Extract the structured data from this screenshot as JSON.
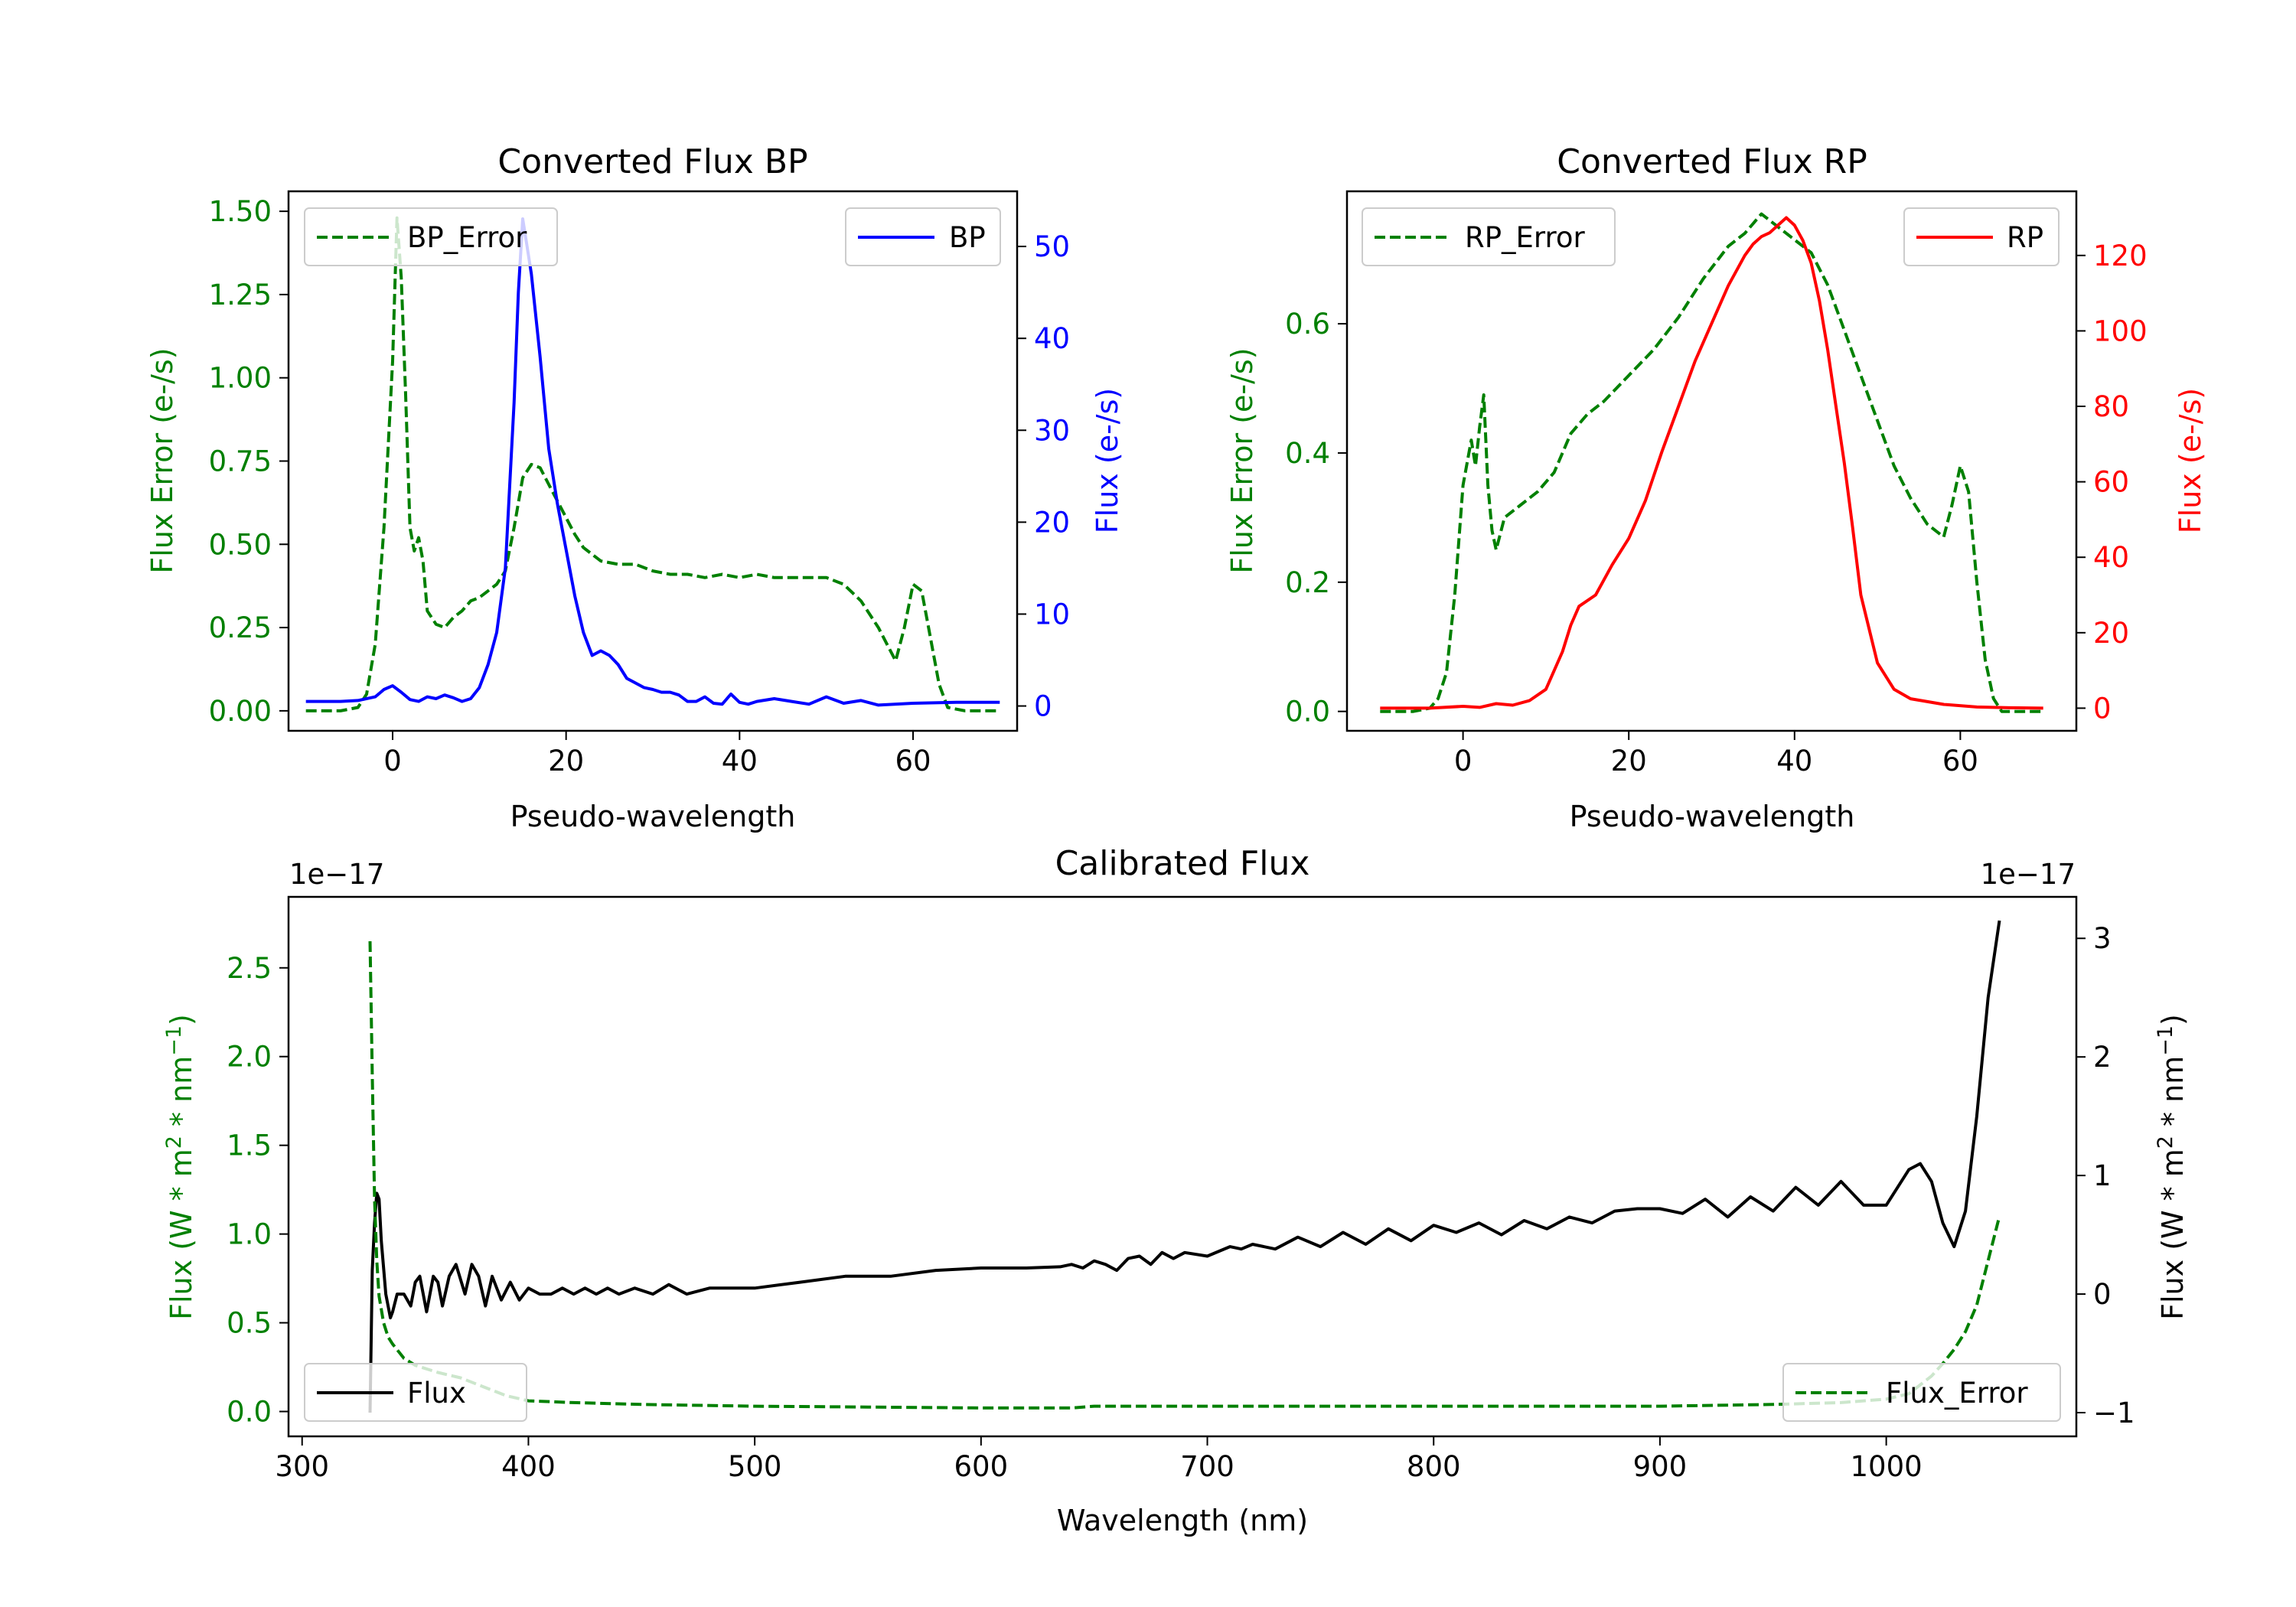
{
  "colors": {
    "bp": "#0000ff",
    "rp": "#ff0000",
    "error": "#008000",
    "flux": "#000000",
    "axis": "#000000"
  },
  "chart_data": [
    {
      "id": "bp",
      "type": "line",
      "title": "Converted Flux BP",
      "xlabel": "Pseudo-wavelength",
      "ylabel_left": "Flux Error (e-/s)",
      "ylabel_right": "Flux (e-/s)",
      "xlim": [
        -12,
        72
      ],
      "ylim_left": [
        -0.06,
        1.56
      ],
      "ylim_right": [
        -2.7,
        56
      ],
      "xticks": [
        0,
        20,
        40,
        60
      ],
      "yticks_left": [
        0.0,
        0.25,
        0.5,
        0.75,
        1.0,
        1.25,
        1.5
      ],
      "yticks_left_labels": [
        "0.00",
        "0.25",
        "0.50",
        "0.75",
        "1.00",
        "1.25",
        "1.50"
      ],
      "yticks_right": [
        0,
        10,
        20,
        30,
        40,
        50
      ],
      "yticks_right_labels": [
        "0",
        "10",
        "20",
        "30",
        "40",
        "50"
      ],
      "legend_left": {
        "label": "BP_Error",
        "placement": "upper-left"
      },
      "legend_right": {
        "label": "BP",
        "placement": "upper-right"
      },
      "series": [
        {
          "name": "BP_Error",
          "axis": "left",
          "style": "dashed",
          "color": "#008000",
          "x": [
            -10,
            -6,
            -4,
            -3,
            -2,
            -1,
            0,
            0.5,
            1,
            1.5,
            2,
            2.5,
            3,
            3.5,
            4,
            5,
            6,
            7,
            8,
            9,
            10,
            11,
            12,
            13,
            14,
            15,
            16,
            17,
            18,
            19,
            20,
            21,
            22,
            24,
            26,
            28,
            30,
            32,
            34,
            36,
            38,
            40,
            42,
            44,
            46,
            48,
            50,
            52,
            54,
            56,
            57,
            58,
            59,
            60,
            61,
            62,
            63,
            64,
            66,
            70
          ],
          "y": [
            0.0,
            0.0,
            0.01,
            0.05,
            0.2,
            0.55,
            1.05,
            1.48,
            1.3,
            0.95,
            0.55,
            0.48,
            0.52,
            0.45,
            0.3,
            0.26,
            0.25,
            0.28,
            0.3,
            0.33,
            0.34,
            0.36,
            0.38,
            0.42,
            0.55,
            0.7,
            0.74,
            0.73,
            0.68,
            0.63,
            0.58,
            0.53,
            0.49,
            0.45,
            0.44,
            0.44,
            0.42,
            0.41,
            0.41,
            0.4,
            0.41,
            0.4,
            0.41,
            0.4,
            0.4,
            0.4,
            0.4,
            0.38,
            0.33,
            0.25,
            0.2,
            0.15,
            0.25,
            0.38,
            0.36,
            0.22,
            0.08,
            0.01,
            0.0,
            0.0
          ]
        },
        {
          "name": "BP",
          "axis": "right",
          "style": "solid",
          "color": "#0000ff",
          "x": [
            -10,
            -6,
            -4,
            -2,
            -1,
            0,
            1,
            2,
            3,
            4,
            5,
            6,
            7,
            8,
            9,
            10,
            11,
            12,
            13,
            14,
            14.5,
            15,
            15.5,
            16,
            17,
            18,
            19,
            20,
            21,
            22,
            23,
            24,
            25,
            26,
            27,
            28,
            29,
            30,
            31,
            32,
            33,
            34,
            35,
            36,
            37,
            38,
            39,
            40,
            41,
            42,
            44,
            46,
            48,
            50,
            52,
            54,
            56,
            60,
            65,
            70
          ],
          "y": [
            0.5,
            0.5,
            0.6,
            1.0,
            1.8,
            2.2,
            1.5,
            0.7,
            0.5,
            1.0,
            0.8,
            1.2,
            0.9,
            0.5,
            0.8,
            2.0,
            4.5,
            8.0,
            15.0,
            33.0,
            45.0,
            53.0,
            50.0,
            47.0,
            38.0,
            28.0,
            22.0,
            17.0,
            12.0,
            8.0,
            5.5,
            6.0,
            5.5,
            4.5,
            3.0,
            2.5,
            2.0,
            1.8,
            1.5,
            1.5,
            1.2,
            0.5,
            0.5,
            1.0,
            0.3,
            0.2,
            1.3,
            0.4,
            0.2,
            0.5,
            0.8,
            0.5,
            0.2,
            1.0,
            0.3,
            0.6,
            0.1,
            0.3,
            0.4,
            0.4
          ]
        }
      ]
    },
    {
      "id": "rp",
      "type": "line",
      "title": "Converted Flux RP",
      "xlabel": "Pseudo-wavelength",
      "ylabel_left": "Flux Error (e-/s)",
      "ylabel_right": "Flux (e-/s)",
      "xlim": [
        -14,
        74
      ],
      "ylim_left": [
        -0.03,
        0.805
      ],
      "ylim_right": [
        -6,
        137
      ],
      "xticks": [
        0,
        20,
        40,
        60
      ],
      "yticks_left": [
        0.0,
        0.2,
        0.4,
        0.6
      ],
      "yticks_left_labels": [
        "0.0",
        "0.2",
        "0.4",
        "0.6"
      ],
      "yticks_right": [
        0,
        20,
        40,
        60,
        80,
        100,
        120
      ],
      "yticks_right_labels": [
        "0",
        "20",
        "40",
        "60",
        "80",
        "100",
        "120"
      ],
      "legend_left": {
        "label": "RP_Error",
        "placement": "upper-left"
      },
      "legend_right": {
        "label": "RP",
        "placement": "upper-right"
      },
      "series": [
        {
          "name": "RP_Error",
          "axis": "left",
          "style": "dashed",
          "color": "#008000",
          "x": [
            -10,
            -6,
            -4,
            -3,
            -2,
            -1,
            0,
            1,
            1.5,
            2,
            2.5,
            3,
            3.5,
            4,
            5,
            7,
            9,
            11,
            13,
            15,
            17,
            20,
            23,
            26,
            29,
            32,
            34,
            36,
            38,
            40,
            42,
            44,
            46,
            48,
            50,
            52,
            54,
            56,
            57,
            58,
            59,
            60,
            61,
            62,
            63,
            64,
            65,
            70
          ],
          "y": [
            0.0,
            0.0,
            0.005,
            0.02,
            0.06,
            0.18,
            0.35,
            0.42,
            0.38,
            0.44,
            0.49,
            0.35,
            0.28,
            0.25,
            0.3,
            0.32,
            0.34,
            0.37,
            0.43,
            0.46,
            0.48,
            0.52,
            0.56,
            0.61,
            0.67,
            0.72,
            0.74,
            0.77,
            0.75,
            0.73,
            0.71,
            0.66,
            0.59,
            0.52,
            0.45,
            0.38,
            0.33,
            0.29,
            0.28,
            0.27,
            0.32,
            0.38,
            0.34,
            0.2,
            0.08,
            0.02,
            0.0,
            0.0
          ]
        },
        {
          "name": "RP",
          "axis": "right",
          "style": "solid",
          "color": "#ff0000",
          "x": [
            -10,
            -4,
            0,
            2,
            4,
            6,
            8,
            10,
            12,
            13,
            14,
            16,
            18,
            20,
            22,
            24,
            26,
            28,
            30,
            32,
            34,
            35,
            36,
            37,
            38,
            39,
            40,
            41,
            42,
            43,
            44,
            45,
            46,
            47,
            48,
            50,
            52,
            54,
            58,
            62,
            66,
            70
          ],
          "y": [
            0.0,
            0.0,
            0.5,
            0.2,
            1.2,
            0.8,
            2.0,
            5.0,
            15.0,
            22.0,
            27.0,
            30.0,
            38.0,
            45.0,
            55.0,
            68.0,
            80.0,
            92.0,
            102.0,
            112.0,
            120.0,
            123.0,
            125.0,
            126.0,
            128.0,
            130.0,
            128.0,
            124.0,
            118.0,
            108.0,
            95.0,
            80.0,
            65.0,
            48.0,
            30.0,
            12.0,
            5.0,
            2.5,
            1.0,
            0.3,
            0.1,
            0.0
          ]
        }
      ]
    },
    {
      "id": "cal",
      "type": "line",
      "title": "Calibrated Flux",
      "xlabel": "Wavelength (nm)",
      "ylabel_left": "Flux (W * m$^2$ * nm$^{-1}$)",
      "ylabel_right": "Flux (W * m$^2$ * nm$^{-1}$)",
      "ylabel_prefix": "Flux (W * m",
      "ylabel_mid": " * nm",
      "ylabel_end": ")",
      "ylabel_sup1": "2",
      "ylabel_sup2": "−1",
      "offset_left": "1e−17",
      "offset_right": "1e−17",
      "xlim": [
        294,
        1084
      ],
      "ylim_left": [
        -0.14,
        2.9
      ],
      "ylim_right": [
        -1.2,
        3.35
      ],
      "xticks": [
        300,
        400,
        500,
        600,
        700,
        800,
        900,
        1000
      ],
      "yticks_left": [
        0.0,
        0.5,
        1.0,
        1.5,
        2.0,
        2.5
      ],
      "yticks_left_labels": [
        "0.0",
        "0.5",
        "1.0",
        "1.5",
        "2.0",
        "2.5"
      ],
      "yticks_right": [
        -1,
        0,
        1,
        2,
        3
      ],
      "yticks_right_labels": [
        "−1",
        "0",
        "1",
        "2",
        "3"
      ],
      "legend_left": {
        "label": "Flux",
        "placement": "lower-left"
      },
      "legend_right": {
        "label": "Flux_Error",
        "placement": "lower-right"
      },
      "series": [
        {
          "name": "Flux",
          "axis": "right",
          "style": "solid",
          "color": "#000000",
          "x": [
            330,
            331,
            332,
            333,
            334,
            335,
            337,
            339,
            340,
            342,
            345,
            348,
            350,
            352,
            355,
            358,
            360,
            362,
            365,
            368,
            372,
            375,
            378,
            381,
            384,
            388,
            392,
            396,
            400,
            405,
            410,
            415,
            420,
            425,
            430,
            435,
            440,
            447,
            455,
            462,
            470,
            480,
            500,
            520,
            540,
            560,
            580,
            600,
            620,
            635,
            640,
            645,
            650,
            655,
            660,
            665,
            670,
            675,
            680,
            685,
            690,
            700,
            710,
            715,
            720,
            730,
            740,
            750,
            760,
            770,
            780,
            790,
            800,
            810,
            820,
            830,
            840,
            850,
            860,
            870,
            880,
            890,
            900,
            910,
            920,
            930,
            940,
            950,
            960,
            970,
            980,
            990,
            1000,
            1010,
            1015,
            1020,
            1025,
            1030,
            1035,
            1040,
            1045,
            1050
          ],
          "y": [
            -1.0,
            0.2,
            0.6,
            0.85,
            0.8,
            0.45,
            0.0,
            -0.2,
            -0.15,
            0.0,
            0.0,
            -0.1,
            0.1,
            0.15,
            -0.15,
            0.15,
            0.1,
            -0.1,
            0.15,
            0.25,
            0.0,
            0.25,
            0.15,
            -0.1,
            0.15,
            -0.05,
            0.1,
            -0.05,
            0.05,
            0.0,
            0.0,
            0.05,
            0.0,
            0.05,
            0.0,
            0.05,
            0.0,
            0.05,
            0.0,
            0.08,
            0.0,
            0.05,
            0.05,
            0.1,
            0.15,
            0.15,
            0.2,
            0.22,
            0.22,
            0.23,
            0.25,
            0.22,
            0.28,
            0.25,
            0.2,
            0.3,
            0.32,
            0.25,
            0.35,
            0.3,
            0.35,
            0.32,
            0.4,
            0.38,
            0.42,
            0.38,
            0.48,
            0.4,
            0.52,
            0.42,
            0.55,
            0.45,
            0.58,
            0.52,
            0.6,
            0.5,
            0.62,
            0.55,
            0.65,
            0.6,
            0.7,
            0.72,
            0.72,
            0.68,
            0.8,
            0.65,
            0.82,
            0.7,
            0.9,
            0.75,
            0.95,
            0.75,
            0.75,
            1.05,
            1.1,
            0.95,
            0.6,
            0.4,
            0.7,
            1.5,
            2.5,
            3.15
          ]
        },
        {
          "name": "Flux_Error",
          "axis": "left",
          "style": "dashed",
          "color": "#008000",
          "x": [
            330,
            331,
            332,
            333,
            334,
            336,
            338,
            340,
            345,
            350,
            360,
            370,
            380,
            390,
            400,
            420,
            450,
            500,
            550,
            600,
            640,
            650,
            700,
            800,
            900,
            950,
            980,
            1000,
            1010,
            1015,
            1020,
            1025,
            1030,
            1035,
            1040,
            1045,
            1050
          ],
          "y": [
            2.65,
            1.9,
            1.2,
            0.85,
            0.65,
            0.5,
            0.42,
            0.38,
            0.3,
            0.26,
            0.22,
            0.19,
            0.14,
            0.09,
            0.06,
            0.05,
            0.04,
            0.03,
            0.025,
            0.02,
            0.02,
            0.03,
            0.03,
            0.03,
            0.03,
            0.04,
            0.05,
            0.07,
            0.1,
            0.15,
            0.2,
            0.27,
            0.35,
            0.45,
            0.6,
            0.85,
            1.1
          ]
        }
      ]
    }
  ]
}
